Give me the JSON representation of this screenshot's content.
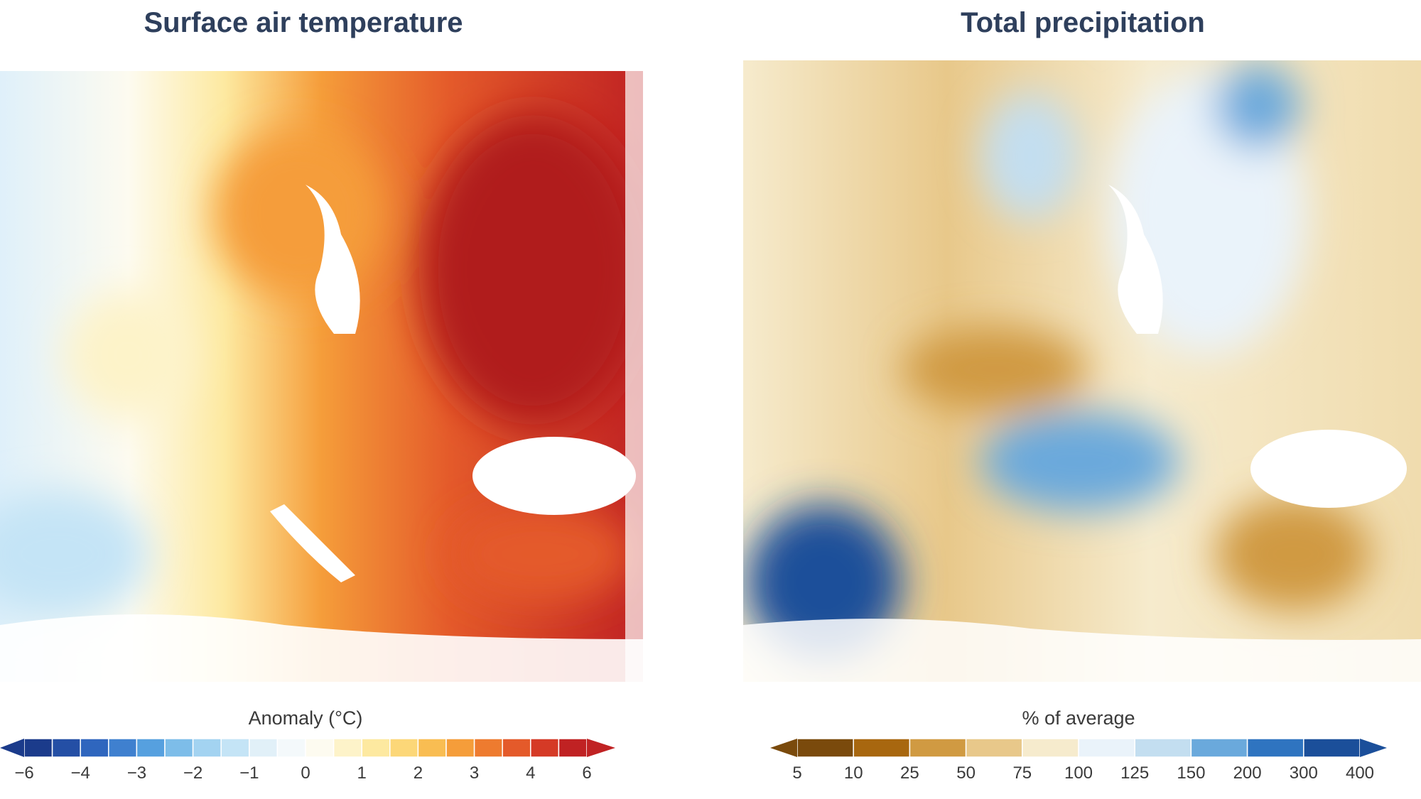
{
  "panels": [
    {
      "title": "Surface air temperature",
      "legend_label": "Anomaly (°C)",
      "ticks": [
        "−6",
        "−4",
        "−3",
        "−2",
        "−1",
        "0",
        "1",
        "2",
        "3",
        "4",
        "6"
      ],
      "colors": [
        "#1b3b8b",
        "#244fa5",
        "#2f66be",
        "#3f80cf",
        "#56a0df",
        "#7dbde9",
        "#a3d3f1",
        "#c4e4f6",
        "#e1f0f8",
        "#f4f9fb",
        "#fdfbf0",
        "#fdf3c9",
        "#fde9a0",
        "#fcd778",
        "#f9bd52",
        "#f59d3a",
        "#ee7b2f",
        "#e45a2a",
        "#d53a26",
        "#c02223"
      ]
    },
    {
      "title": "Total precipitation",
      "legend_label": "% of average",
      "ticks": [
        "5",
        "10",
        "25",
        "50",
        "75",
        "100",
        "125",
        "150",
        "200",
        "300",
        "400"
      ],
      "colors": [
        "#7a4a0c",
        "#a8670f",
        "#d09a42",
        "#e8c88a",
        "#f6ebcd",
        "#eaf3fa",
        "#c3def0",
        "#6aa9dc",
        "#2f74c0",
        "#1b4f9a"
      ]
    }
  ]
}
